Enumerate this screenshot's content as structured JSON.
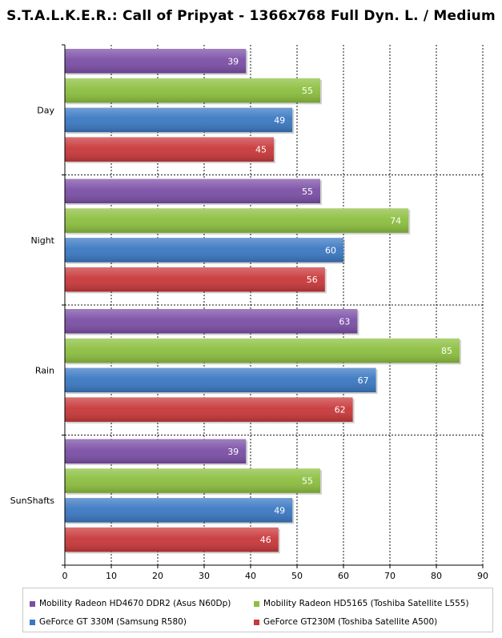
{
  "chart_data": {
    "type": "bar",
    "orientation": "horizontal",
    "title": "S.T.A.L.K.E.R.: Call of Pripyat - 1366x768 Full Dyn. L. / Medium",
    "categories": [
      "Day",
      "Night",
      "Rain",
      "SunShafts"
    ],
    "series": [
      {
        "name": "Mobility Radeon HD4670 DDR2 (Asus N60Dp)",
        "color": "#7b4fa6",
        "values": [
          39,
          55,
          63,
          39
        ]
      },
      {
        "name": "Mobility Radeon HD5165 (Toshiba Satellite L555)",
        "color": "#8cbf3f",
        "values": [
          55,
          74,
          85,
          55
        ]
      },
      {
        "name": "GeForce GT 330M (Samsung R580)",
        "color": "#3a78c2",
        "values": [
          49,
          60,
          67,
          49
        ]
      },
      {
        "name": "GeForce GT230M (Toshiba Satellite A500)",
        "color": "#c9383a",
        "values": [
          45,
          56,
          62,
          46
        ]
      }
    ],
    "xlim": [
      0,
      90
    ],
    "xticks": [
      0,
      10,
      20,
      30,
      40,
      50,
      60,
      70,
      80,
      90
    ],
    "grid": true,
    "legend_position": "bottom",
    "data_labels": true
  }
}
